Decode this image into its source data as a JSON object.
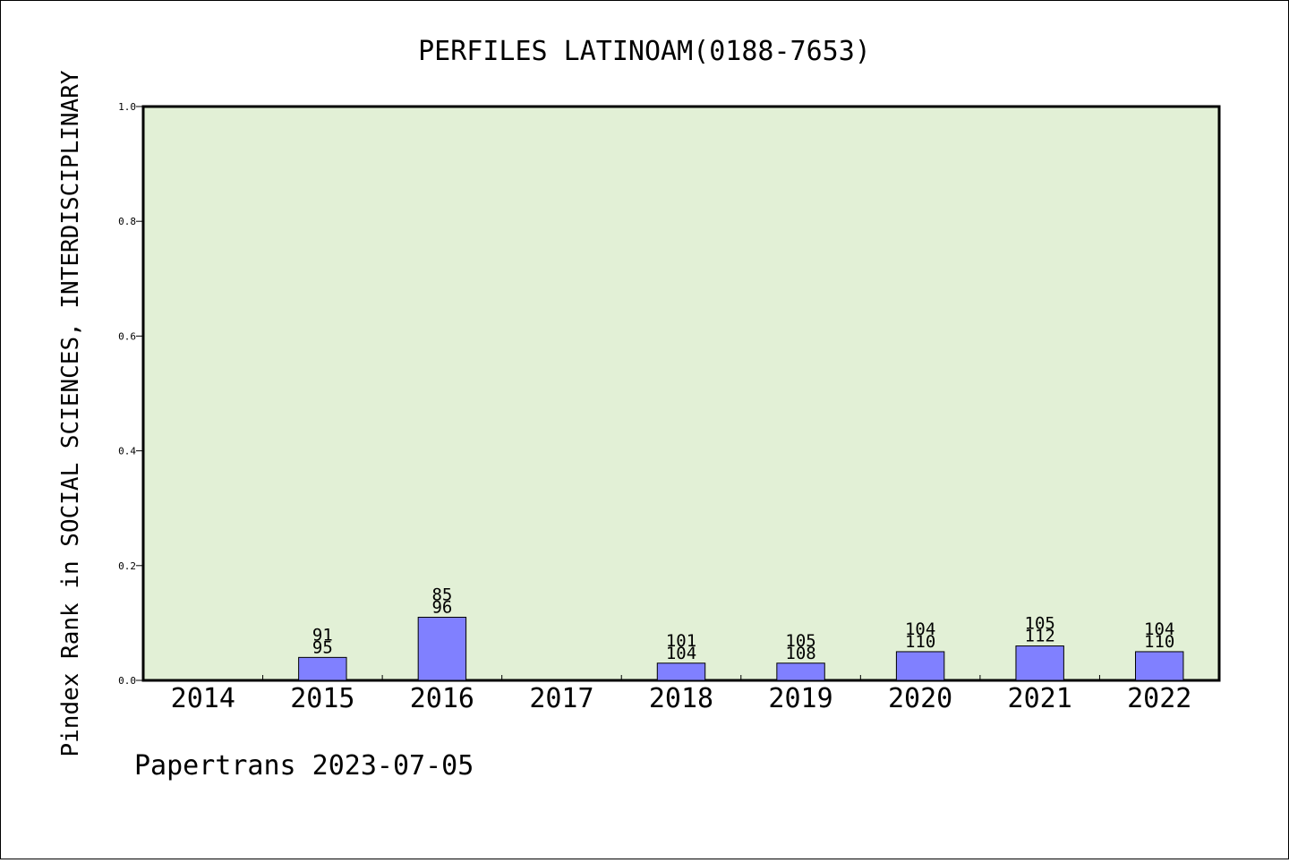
{
  "chart_data": {
    "type": "bar",
    "title": "PERFILES LATINOAM(0188-7653)",
    "ylabel": "Pindex Rank in SOCIAL SCIENCES, INTERDISCIPLINARY",
    "xlabel": "",
    "footer": "Papertrans 2023-07-05",
    "ylim": [
      0,
      1.0
    ],
    "yticks": [
      "0.0",
      "0.2",
      "0.4",
      "0.6",
      "0.8",
      "1.0"
    ],
    "categories": [
      "2014",
      "2015",
      "2016",
      "2017",
      "2018",
      "2019",
      "2020",
      "2021",
      "2022"
    ],
    "values": [
      0,
      0.04,
      0.11,
      0,
      0.03,
      0.03,
      0.05,
      0.06,
      0.05
    ],
    "label_top": [
      "",
      "91",
      "85",
      "",
      "101",
      "105",
      "104",
      "105",
      "104"
    ],
    "label_bottom": [
      "",
      "95",
      "96",
      "",
      "104",
      "108",
      "110",
      "112",
      "110"
    ],
    "grid": false,
    "colors": {
      "plot_background": "#e2f0d6",
      "bar_fill": "#8080ff",
      "bar_stroke": "#000000"
    }
  }
}
